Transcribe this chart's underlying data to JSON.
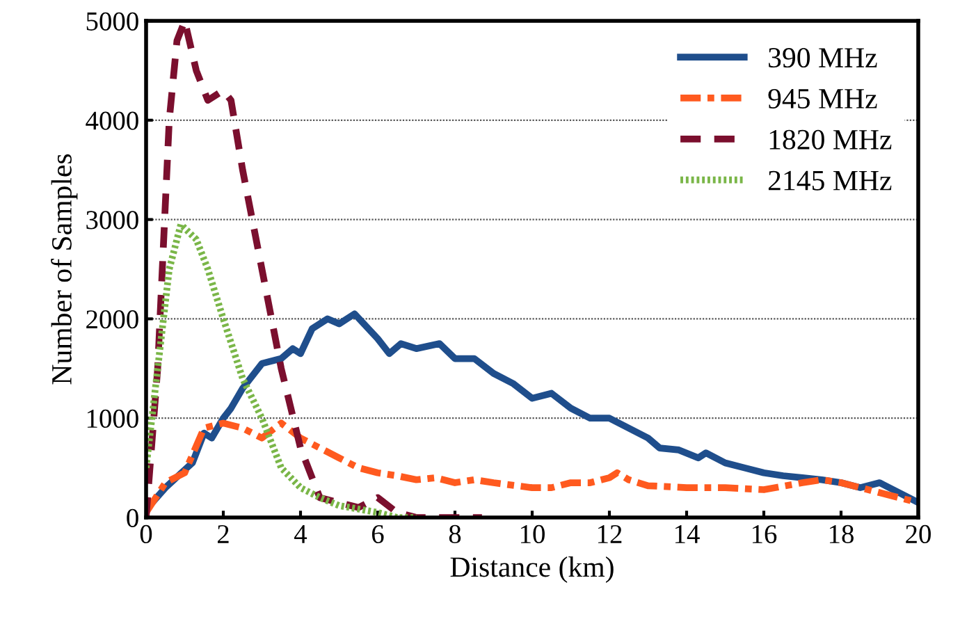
{
  "chart_data": {
    "type": "line",
    "xlabel": "Distance (km)",
    "ylabel": "Number of Samples",
    "xlim": [
      0,
      20
    ],
    "xticks": [
      0,
      2,
      4,
      6,
      8,
      10,
      12,
      14,
      16,
      18,
      20
    ],
    "ylim": [
      0,
      5000
    ],
    "yticks": [
      0,
      1000,
      2000,
      3000,
      4000,
      5000
    ],
    "grid": "y",
    "legend": "top right",
    "series": [
      {
        "name": "390 MHz",
        "color": "#1f4e8c",
        "line_style": "solid",
        "x": [
          0,
          0.5,
          1,
          1.2,
          1.5,
          1.7,
          2,
          2.2,
          2.5,
          3,
          3.5,
          3.8,
          4,
          4.3,
          4.7,
          5,
          5.4,
          6,
          6.3,
          6.6,
          7,
          7.6,
          8,
          8.5,
          9,
          9.5,
          10,
          10.5,
          11,
          11.5,
          12,
          12.5,
          13,
          13.3,
          13.8,
          14.3,
          14.5,
          15,
          15.5,
          16,
          16.5,
          17,
          17.5,
          18,
          18.5,
          19,
          19.5,
          20
        ],
        "values": [
          80,
          300,
          480,
          550,
          850,
          800,
          1000,
          1100,
          1300,
          1550,
          1600,
          1700,
          1650,
          1900,
          2000,
          1950,
          2050,
          1800,
          1650,
          1750,
          1700,
          1750,
          1600,
          1600,
          1450,
          1350,
          1200,
          1250,
          1100,
          1000,
          1000,
          900,
          800,
          700,
          680,
          600,
          650,
          550,
          500,
          450,
          420,
          400,
          380,
          350,
          300,
          350,
          250,
          150
        ]
      },
      {
        "name": "945 MHz",
        "color": "#ff5a1f",
        "line_style": "dashdot",
        "x": [
          0,
          0.5,
          1,
          1.5,
          2,
          2.5,
          3,
          3.5,
          4,
          4.5,
          5,
          5.5,
          6,
          6.5,
          7,
          7.5,
          8,
          8.5,
          9,
          10,
          10.5,
          11,
          11.5,
          12,
          12.2,
          12.5,
          13,
          14,
          15,
          16,
          17,
          17.5,
          18,
          19,
          20
        ],
        "values": [
          50,
          350,
          450,
          900,
          950,
          900,
          800,
          950,
          800,
          700,
          600,
          500,
          450,
          420,
          380,
          400,
          350,
          380,
          350,
          300,
          300,
          350,
          350,
          400,
          450,
          380,
          320,
          300,
          300,
          280,
          350,
          380,
          350,
          250,
          150
        ]
      },
      {
        "name": "1820 MHz",
        "color": "#7b0f2e",
        "line_style": "dashed",
        "x": [
          0,
          0.3,
          0.6,
          0.8,
          1,
          1.3,
          1.6,
          2,
          2.2,
          2.5,
          3,
          3.5,
          4,
          4.5,
          5,
          5.5,
          6,
          6.5,
          7,
          8,
          8.7
        ],
        "values": [
          0,
          1500,
          4000,
          4800,
          5000,
          4500,
          4200,
          4300,
          4200,
          3500,
          2500,
          1500,
          700,
          200,
          150,
          100,
          200,
          50,
          0,
          0,
          0
        ]
      },
      {
        "name": "2145 MHz",
        "color": "#7ab648",
        "line_style": "dotted",
        "x": [
          0,
          0.3,
          0.6,
          0.9,
          1.3,
          1.6,
          2,
          2.5,
          3,
          3.5,
          4,
          4.5,
          5,
          6,
          6.5,
          7
        ],
        "values": [
          500,
          1500,
          2500,
          2950,
          2800,
          2500,
          2000,
          1400,
          1000,
          500,
          300,
          200,
          120,
          50,
          0,
          0
        ]
      }
    ]
  }
}
